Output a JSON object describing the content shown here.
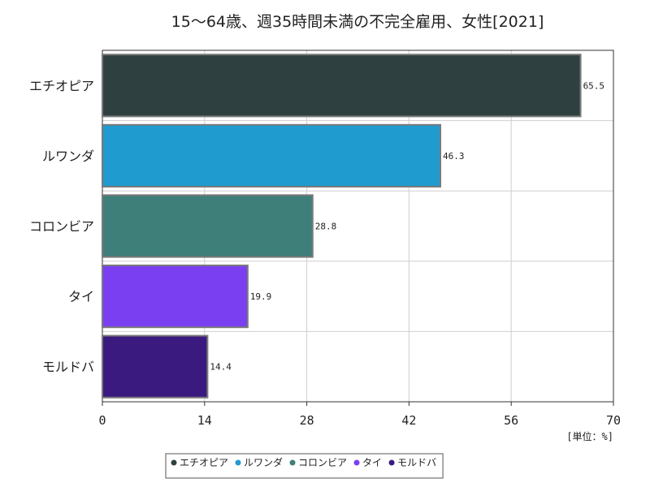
{
  "chart_data": {
    "type": "bar",
    "orientation": "horizontal",
    "title": "15～64歳、週35時間未満の不完全雇用、女性[2021]",
    "categories": [
      "エチオピア",
      "ルワンダ",
      "コロンビア",
      "タイ",
      "モルドバ"
    ],
    "values": [
      65.5,
      46.3,
      28.8,
      19.9,
      14.4
    ],
    "value_labels": [
      "65.5",
      "46.3",
      "28.8",
      "19.9",
      "14.4"
    ],
    "colors": [
      "#2f4040",
      "#1f9bcf",
      "#3f7f7a",
      "#7b3ff2",
      "#3b1a80"
    ],
    "xlim": [
      0,
      70
    ],
    "xticks": [
      0,
      14,
      28,
      42,
      56,
      70
    ],
    "unit_label": "[単位：%]",
    "grid": true,
    "legend": {
      "position": "bottom",
      "entries": [
        "エチオピア",
        "ルワンダ",
        "コロンビア",
        "タイ",
        "モルドバ"
      ]
    }
  }
}
